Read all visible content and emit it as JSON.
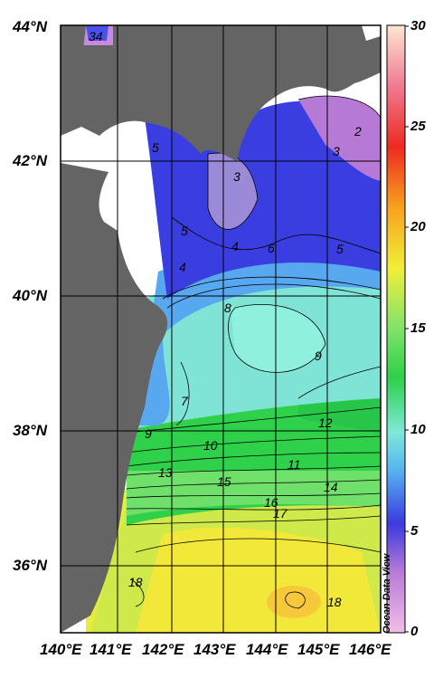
{
  "map": {
    "lat_labels": [
      "44°N",
      "42°N",
      "40°N",
      "38°N",
      "36°N"
    ],
    "lon_labels": [
      "140°E",
      "141°E",
      "142°E",
      "143°E",
      "144°E",
      "145°E",
      "146°E"
    ],
    "contour_labels": [
      "34",
      "5",
      "3",
      "2",
      "3",
      "5",
      "4",
      "4",
      "6",
      "5",
      "8",
      "9",
      "7",
      "9",
      "10",
      "11",
      "12",
      "13",
      "15",
      "14",
      "16",
      "17",
      "18",
      "18"
    ],
    "land_color": "#646464"
  },
  "colorbar": {
    "ticks": [
      "30",
      "25",
      "20",
      "15",
      "10",
      "5",
      "0"
    ],
    "range": [
      0,
      30
    ]
  },
  "watermark": "Ocean Data View"
}
